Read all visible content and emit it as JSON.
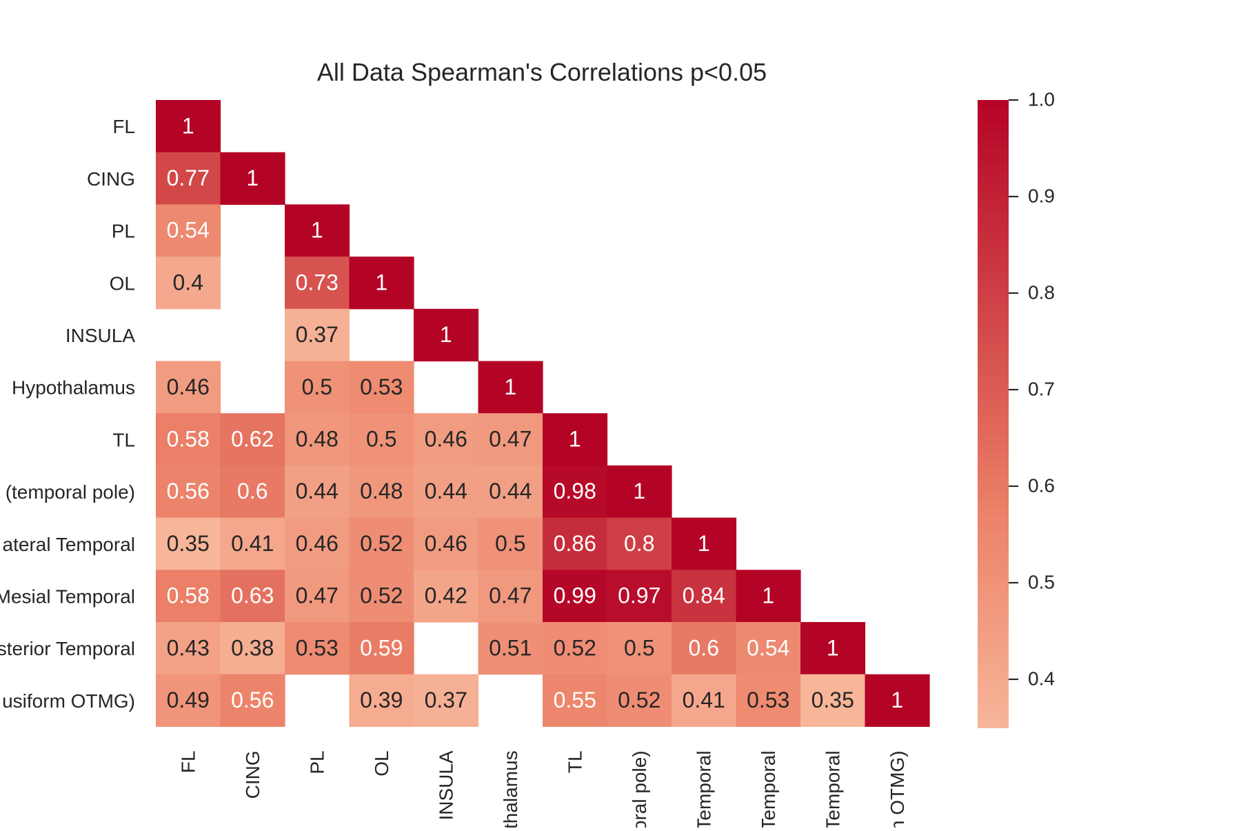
{
  "chart_data": {
    "type": "heatmap",
    "title": "All Data Spearman's Correlations p<0.05",
    "row_labels": [
      "FL",
      "CING",
      "PL",
      "OL",
      "INSULA",
      "Hypothalamus",
      "TL",
      "(temporal pole)",
      "ateral Temporal",
      "Mesial Temporal",
      "sterior Temporal",
      "usiform OTMG)"
    ],
    "col_labels": [
      "FL",
      "CING",
      "PL",
      "OL",
      "INSULA",
      "thalamus",
      "TL",
      "oral pole)",
      "Temporal",
      "Temporal",
      "Temporal",
      "n OTMG)"
    ],
    "matrix": [
      [
        1,
        null,
        null,
        null,
        null,
        null,
        null,
        null,
        null,
        null,
        null,
        null
      ],
      [
        0.77,
        1,
        null,
        null,
        null,
        null,
        null,
        null,
        null,
        null,
        null,
        null
      ],
      [
        0.54,
        null,
        1,
        null,
        null,
        null,
        null,
        null,
        null,
        null,
        null,
        null
      ],
      [
        0.4,
        null,
        0.73,
        1,
        null,
        null,
        null,
        null,
        null,
        null,
        null,
        null
      ],
      [
        null,
        null,
        0.37,
        null,
        1,
        null,
        null,
        null,
        null,
        null,
        null,
        null
      ],
      [
        0.46,
        null,
        0.5,
        0.53,
        null,
        1,
        null,
        null,
        null,
        null,
        null,
        null
      ],
      [
        0.58,
        0.62,
        0.48,
        0.5,
        0.46,
        0.47,
        1,
        null,
        null,
        null,
        null,
        null
      ],
      [
        0.56,
        0.6,
        0.44,
        0.48,
        0.44,
        0.44,
        0.98,
        1,
        null,
        null,
        null,
        null
      ],
      [
        0.35,
        0.41,
        0.46,
        0.52,
        0.46,
        0.5,
        0.86,
        0.8,
        1,
        null,
        null,
        null
      ],
      [
        0.58,
        0.63,
        0.47,
        0.52,
        0.42,
        0.47,
        0.99,
        0.97,
        0.84,
        1,
        null,
        null
      ],
      [
        0.43,
        0.38,
        0.53,
        0.59,
        null,
        0.51,
        0.52,
        0.5,
        0.6,
        0.54,
        1,
        null
      ],
      [
        0.49,
        0.56,
        null,
        0.39,
        0.37,
        null,
        0.55,
        0.52,
        0.41,
        0.53,
        0.35,
        1
      ]
    ],
    "colorbar": {
      "range": [
        0.35,
        1.0
      ],
      "ticks": [
        "0.4",
        "0.5",
        "0.6",
        "0.7",
        "0.8",
        "0.9",
        "1.0"
      ],
      "color_low": "#f7b599",
      "color_mid": "#eb8067",
      "color_high": "#b40426"
    },
    "grid": false
  }
}
